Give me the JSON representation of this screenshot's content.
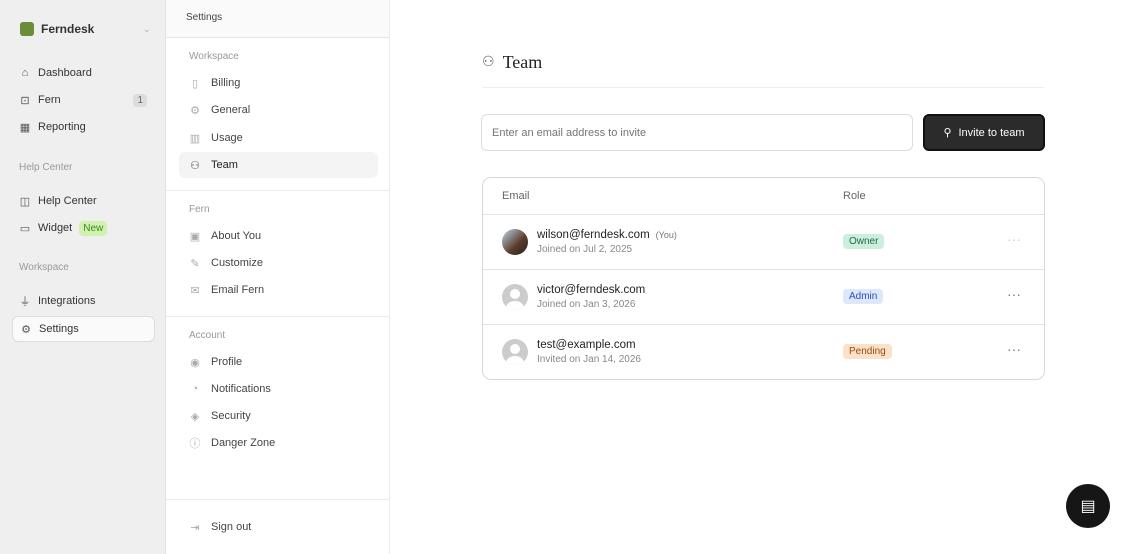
{
  "sidebar": {
    "brand": "Ferndesk",
    "items": [
      {
        "label": "Dashboard",
        "icon": "home-icon"
      },
      {
        "label": "Fern",
        "icon": "bot-icon",
        "badge": "1"
      },
      {
        "label": "Reporting",
        "icon": "chart-icon"
      }
    ],
    "help_center_label": "Help Center",
    "help_items": [
      {
        "label": "Help Center",
        "icon": "book-icon"
      },
      {
        "label": "Widget",
        "icon": "message-icon",
        "badge": "New"
      }
    ],
    "workspace_label": "Workspace",
    "workspace_items": [
      {
        "label": "Integrations",
        "icon": "plug-icon"
      },
      {
        "label": "Settings",
        "icon": "gear-icon"
      }
    ]
  },
  "settings": {
    "header": "Settings",
    "workspace_label": "Workspace",
    "workspace": [
      "Billing",
      "General",
      "Usage",
      "Team"
    ],
    "fern_label": "Fern",
    "fern": [
      "About You",
      "Customize",
      "Email Fern"
    ],
    "account_label": "Account",
    "account": [
      "Profile",
      "Notifications",
      "Security",
      "Danger Zone"
    ],
    "sign_out": "Sign out"
  },
  "main": {
    "title": "Team",
    "invite_placeholder": "Enter an email address to invite",
    "invite_button": "Invite to team",
    "table": {
      "columns": [
        "Email",
        "Role"
      ],
      "rows": [
        {
          "email": "wilson@ferndesk.com",
          "you": "(You)",
          "date": "Joined on Jul 2, 2025",
          "role": "Owner"
        },
        {
          "email": "victor@ferndesk.com",
          "date": "Joined on Jan 3, 2026",
          "role": "Admin"
        },
        {
          "email": "test@example.com",
          "date": "Invited on Jan 14, 2026",
          "role": "Pending"
        }
      ]
    }
  },
  "colors": {
    "owner": "#cdeedd",
    "admin": "#dde8fd",
    "pending": "#fbe1c8"
  }
}
